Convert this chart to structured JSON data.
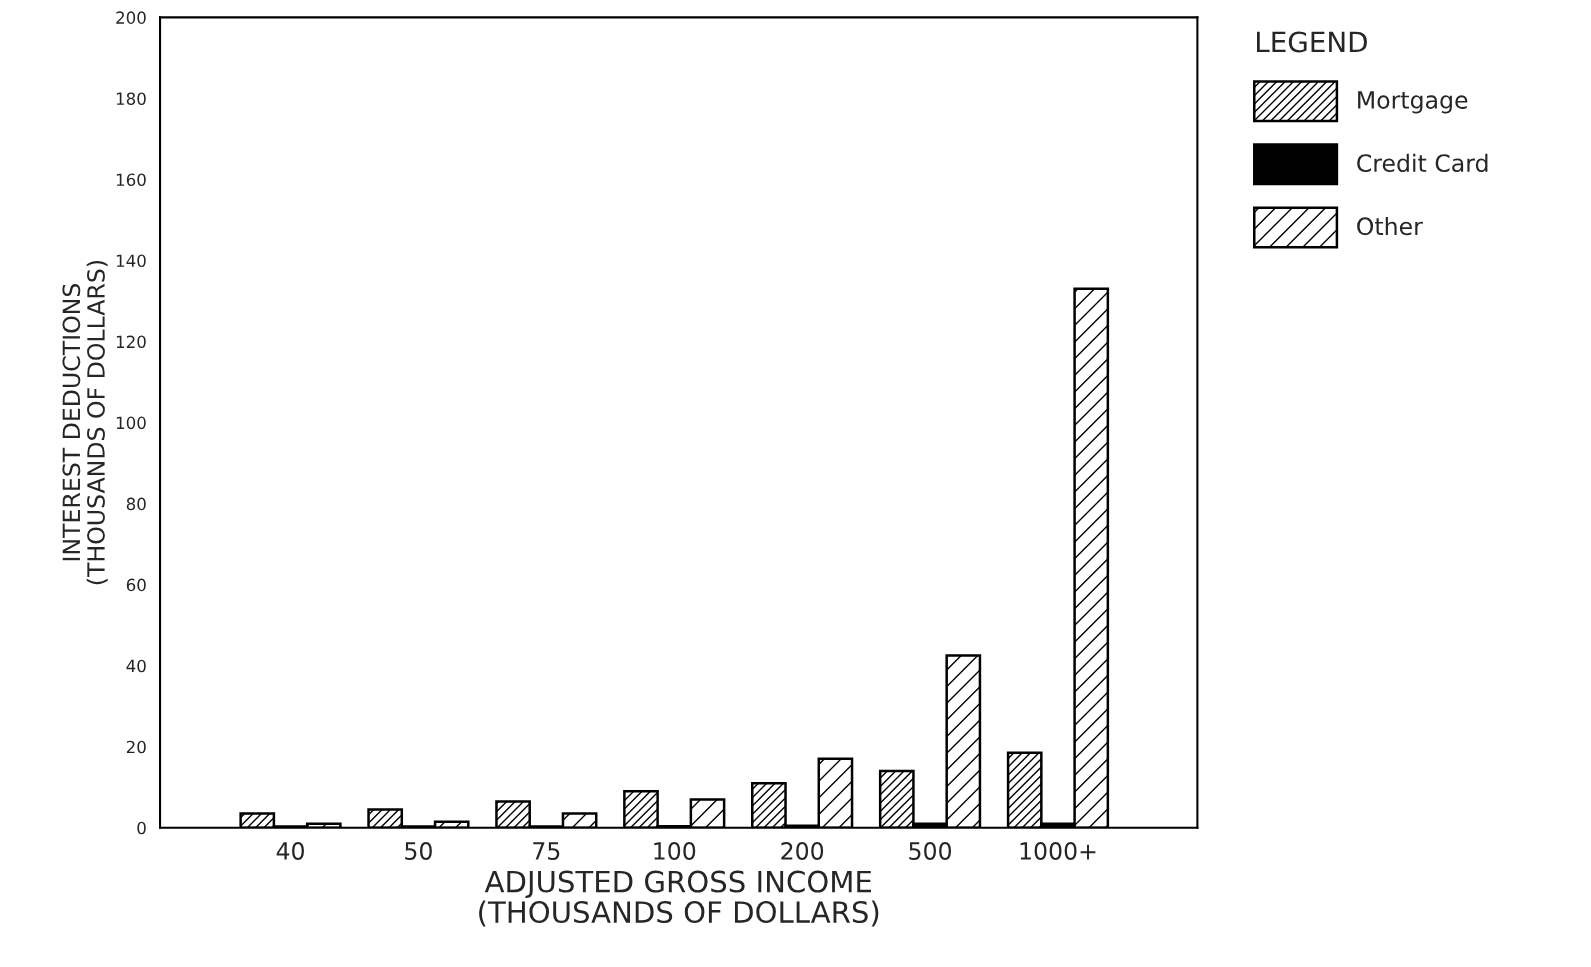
{
  "chart_data": {
    "type": "bar",
    "xlabel": "ADJUSTED GROSS INCOME\n(THOUSANDS OF DOLLARS)",
    "ylabel": "INTEREST DEDUCTIONS\n(THOUSANDS OF DOLLARS)",
    "legend_title": "LEGEND",
    "categories": [
      "40",
      "50",
      "75",
      "100",
      "200",
      "500",
      "1000+"
    ],
    "series": [
      {
        "name": "Mortgage",
        "color": "#000000",
        "values": [
          3.5,
          4.5,
          6.5,
          9,
          11,
          14,
          18.5
        ]
      },
      {
        "name": "Credit Card",
        "color": "#000000",
        "values": [
          0.3,
          0.3,
          0.3,
          0.4,
          0.5,
          1,
          1
        ]
      },
      {
        "name": "Other",
        "color": "#000000",
        "values": [
          1,
          1.5,
          3.5,
          7,
          17,
          42.5,
          133
        ]
      }
    ],
    "ylim": [
      0,
      200
    ],
    "yticks": [
      0,
      20,
      40,
      60,
      80,
      100,
      120,
      140,
      160,
      180,
      200
    ],
    "grid": false,
    "legend": "top right"
  }
}
